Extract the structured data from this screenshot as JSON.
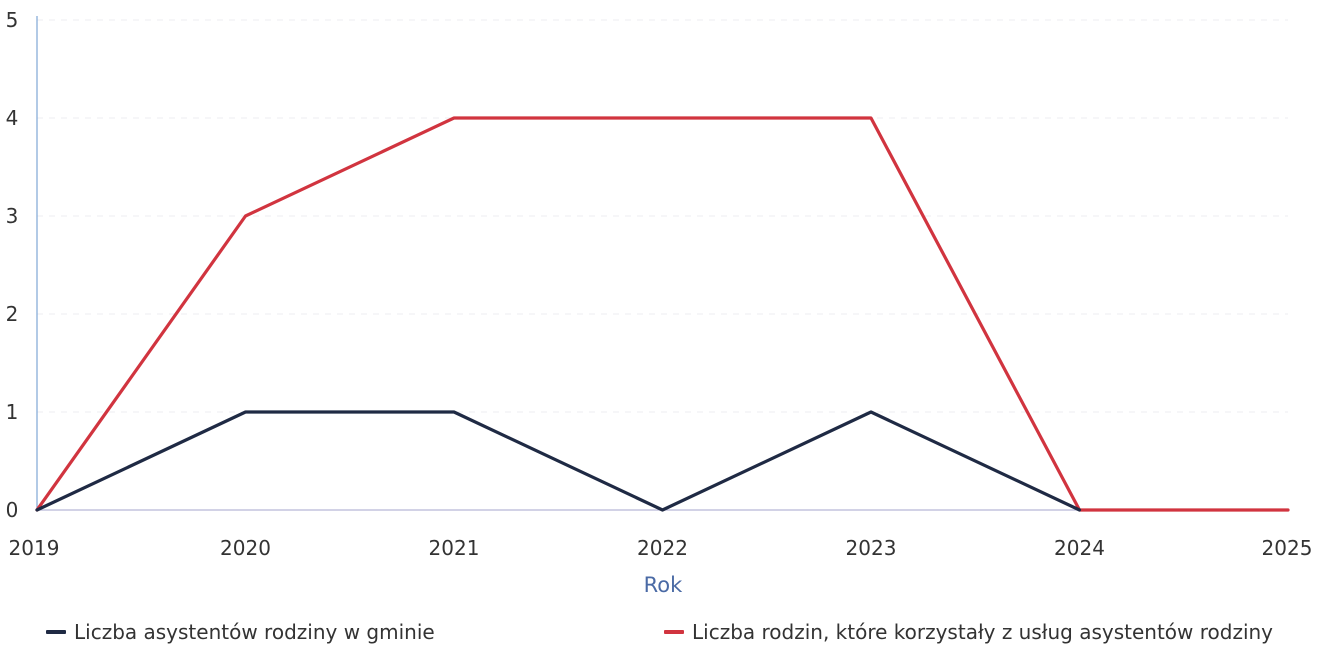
{
  "chart_data": {
    "type": "line",
    "x": [
      "2019",
      "2020",
      "2021",
      "2022",
      "2023",
      "2024",
      "2025"
    ],
    "xlabel": "Rok",
    "ylabel": "",
    "ylim": [
      0,
      5
    ],
    "yticks": [
      "0",
      "1",
      "2",
      "3",
      "4",
      "5"
    ],
    "grid": true,
    "legend_position": "bottom",
    "series": [
      {
        "name": "Liczba asystentów rodziny w gminie",
        "color": "#1f2a44",
        "values": [
          0,
          1,
          1,
          0,
          1,
          0,
          null
        ]
      },
      {
        "name": "Liczba rodzin, które korzystały z usług asystentów rodziny",
        "color": "#d1343f",
        "values": [
          0,
          3,
          4,
          4,
          4,
          0,
          0
        ]
      }
    ],
    "xlabel_color": "#4a6aa5",
    "axis_color": "#7fa6d6"
  }
}
